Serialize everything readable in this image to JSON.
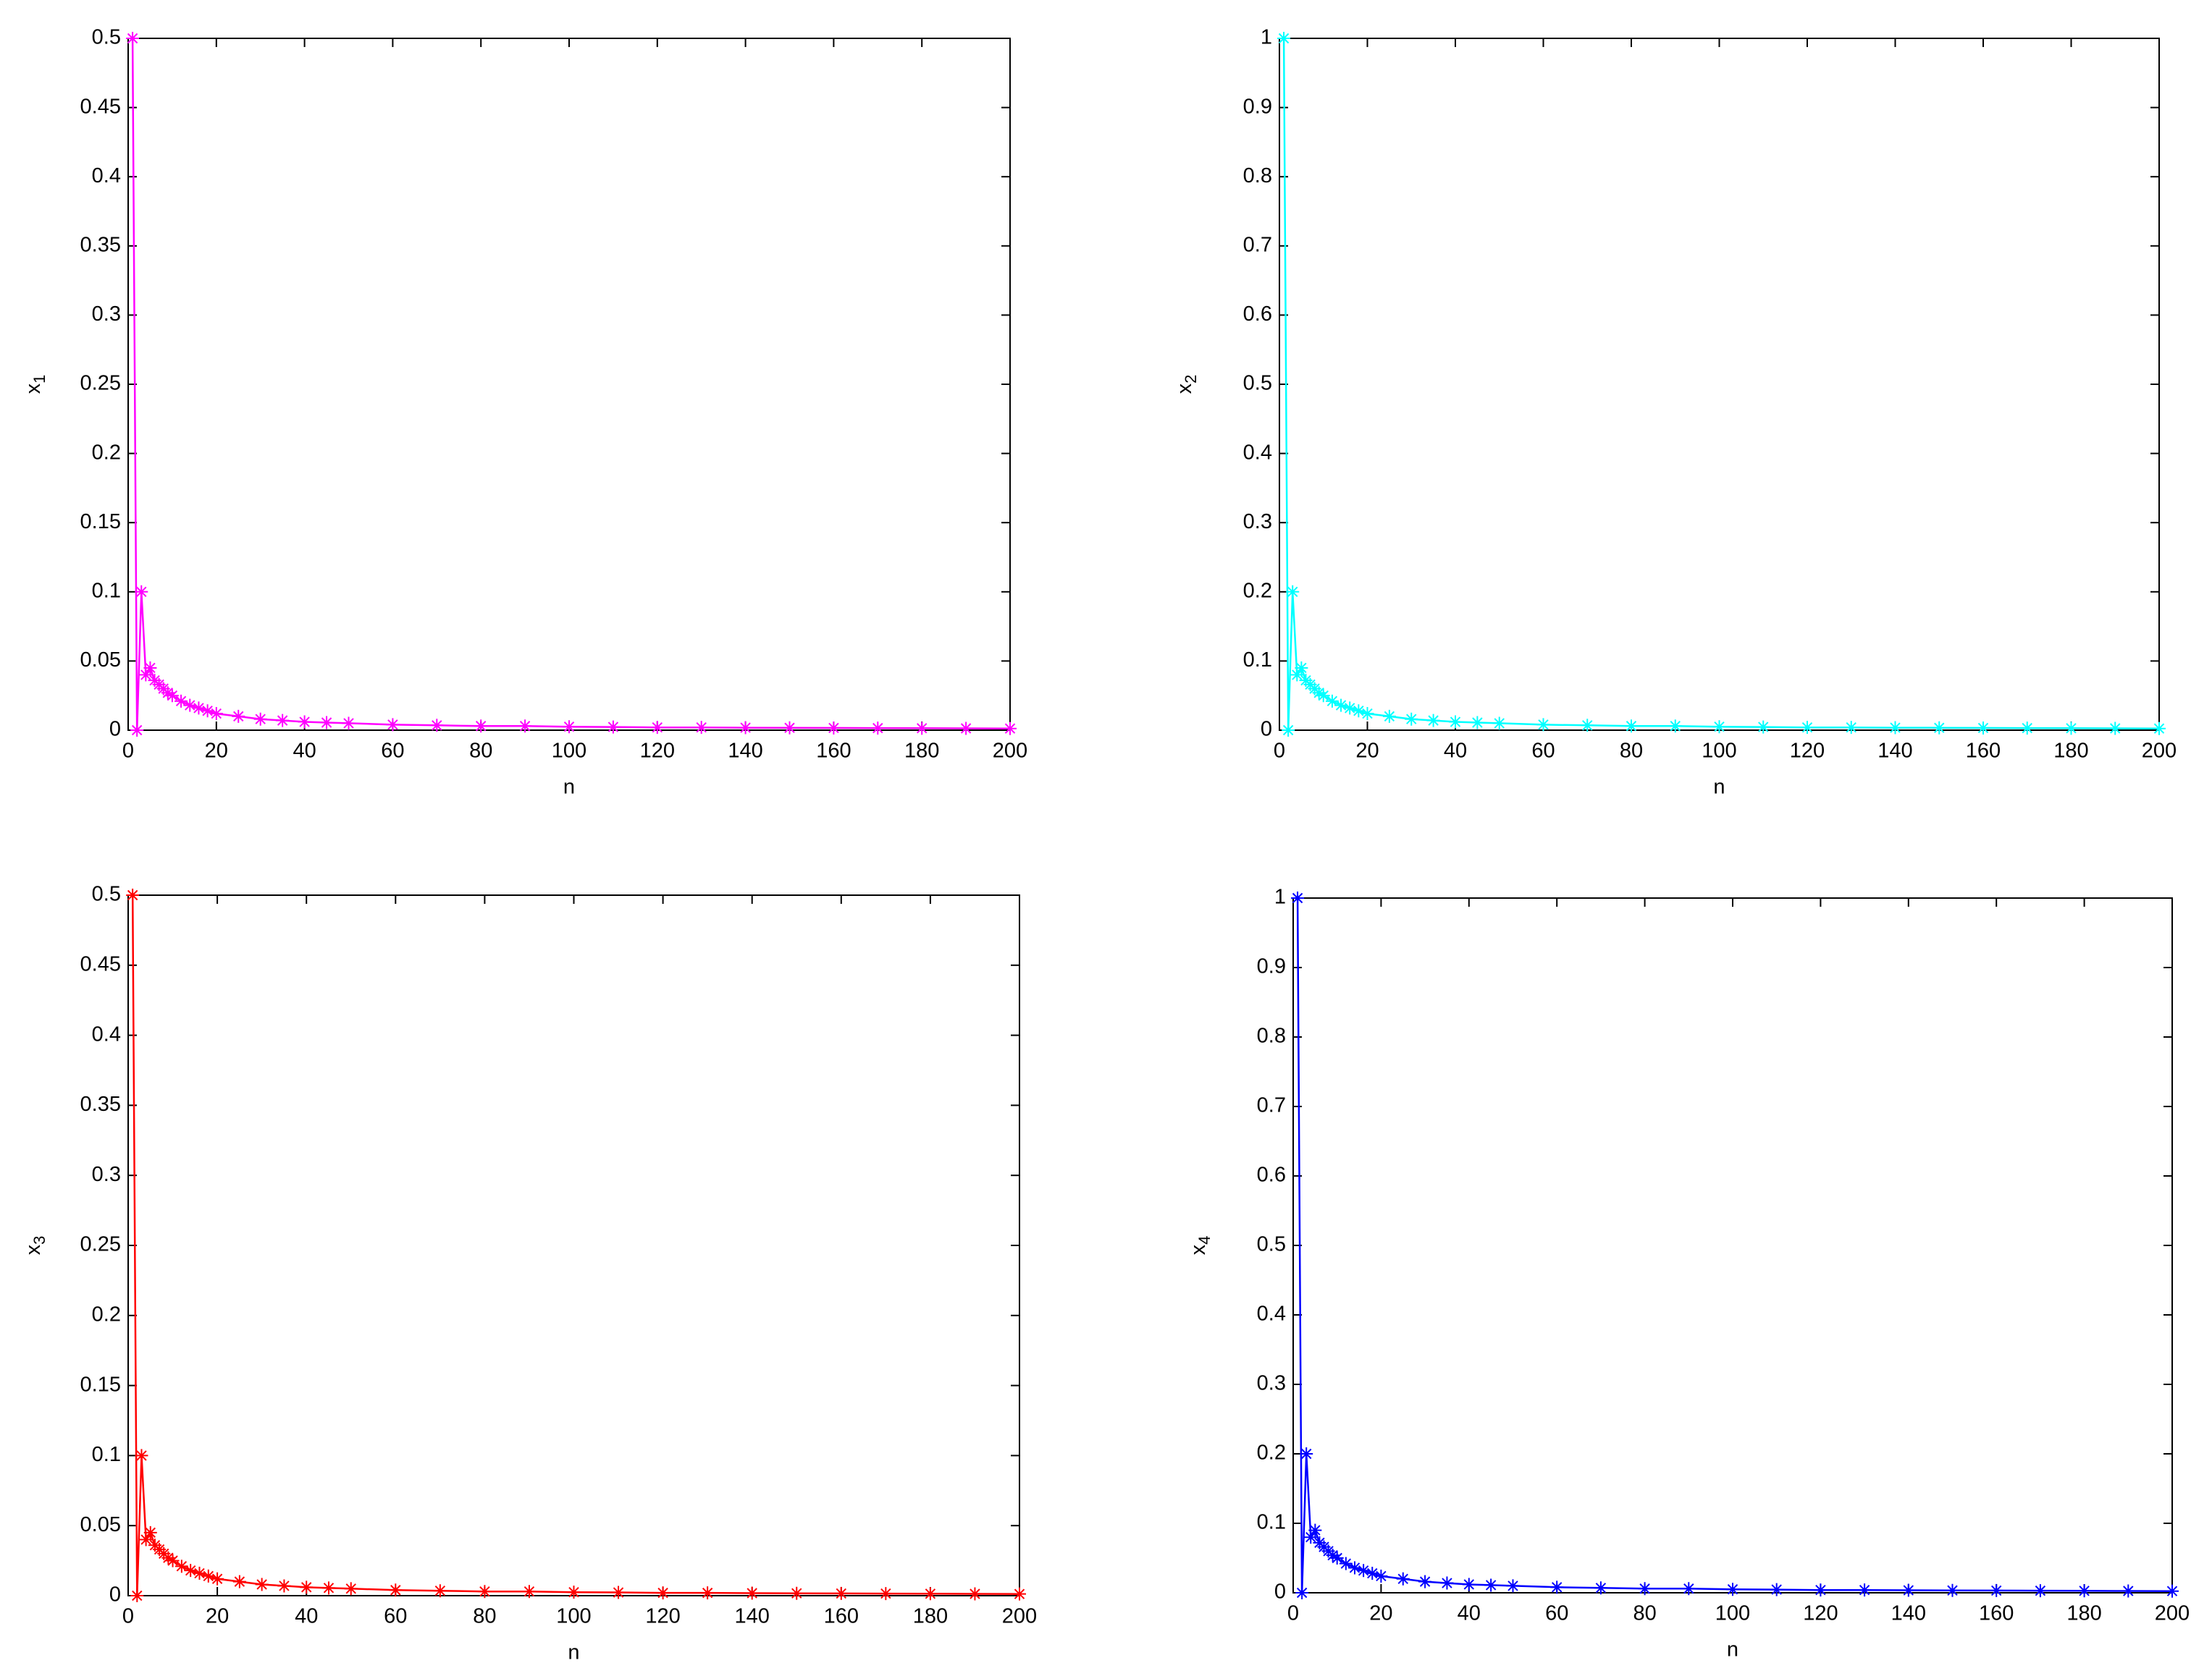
{
  "chart_data": [
    {
      "type": "line",
      "color": "#ff00ff",
      "xlabel": "n",
      "ylabel": "x",
      "ylabel_subscript": "1",
      "x": [
        1,
        2,
        3,
        4,
        5,
        6,
        7,
        8,
        9,
        10,
        12,
        14,
        16,
        18,
        20,
        25,
        30,
        35,
        40,
        45,
        50,
        60,
        70,
        80,
        90,
        100,
        110,
        120,
        130,
        140,
        150,
        160,
        170,
        180,
        190,
        200
      ],
      "values": [
        0.5,
        0,
        0.1,
        0.04,
        0.045,
        0.036,
        0.033,
        0.03,
        0.027,
        0.025,
        0.021,
        0.018,
        0.016,
        0.014,
        0.012,
        0.01,
        0.008,
        0.007,
        0.006,
        0.0055,
        0.005,
        0.004,
        0.0035,
        0.003,
        0.003,
        0.0025,
        0.0023,
        0.002,
        0.002,
        0.0018,
        0.0017,
        0.0016,
        0.0015,
        0.0014,
        0.0013,
        0.0012
      ],
      "xlim": [
        0,
        200
      ],
      "xticks": [
        0,
        20,
        40,
        60,
        80,
        100,
        120,
        140,
        160,
        180,
        200
      ],
      "ylim": [
        0,
        0.5
      ],
      "yticks": [
        0,
        0.05,
        0.1,
        0.15,
        0.2,
        0.25,
        0.3,
        0.35,
        0.4,
        0.45,
        0.5
      ]
    },
    {
      "type": "line",
      "color": "#00ffff",
      "xlabel": "n",
      "ylabel": "x",
      "ylabel_subscript": "2",
      "x": [
        1,
        2,
        3,
        4,
        5,
        6,
        7,
        8,
        9,
        10,
        12,
        14,
        16,
        18,
        20,
        25,
        30,
        35,
        40,
        45,
        50,
        60,
        70,
        80,
        90,
        100,
        110,
        120,
        130,
        140,
        150,
        160,
        170,
        180,
        190,
        200
      ],
      "values": [
        1,
        0,
        0.2,
        0.08,
        0.09,
        0.072,
        0.066,
        0.06,
        0.054,
        0.05,
        0.042,
        0.036,
        0.032,
        0.028,
        0.024,
        0.02,
        0.016,
        0.014,
        0.012,
        0.011,
        0.01,
        0.008,
        0.007,
        0.006,
        0.006,
        0.005,
        0.0046,
        0.004,
        0.004,
        0.0036,
        0.0034,
        0.0032,
        0.003,
        0.0028,
        0.0026,
        0.0024
      ],
      "xlim": [
        0,
        200
      ],
      "xticks": [
        0,
        20,
        40,
        60,
        80,
        100,
        120,
        140,
        160,
        180,
        200
      ],
      "ylim": [
        0,
        1
      ],
      "yticks": [
        0,
        0.1,
        0.2,
        0.3,
        0.4,
        0.5,
        0.6,
        0.7,
        0.8,
        0.9,
        1
      ]
    },
    {
      "type": "line",
      "color": "#ff0000",
      "xlabel": "n",
      "ylabel": "x",
      "ylabel_subscript": "3",
      "x": [
        1,
        2,
        3,
        4,
        5,
        6,
        7,
        8,
        9,
        10,
        12,
        14,
        16,
        18,
        20,
        25,
        30,
        35,
        40,
        45,
        50,
        60,
        70,
        80,
        90,
        100,
        110,
        120,
        130,
        140,
        150,
        160,
        170,
        180,
        190,
        200
      ],
      "values": [
        0.5,
        0,
        0.1,
        0.04,
        0.045,
        0.036,
        0.033,
        0.03,
        0.027,
        0.025,
        0.021,
        0.018,
        0.016,
        0.014,
        0.012,
        0.01,
        0.008,
        0.007,
        0.006,
        0.0055,
        0.005,
        0.004,
        0.0035,
        0.003,
        0.003,
        0.0025,
        0.0023,
        0.002,
        0.002,
        0.0018,
        0.0017,
        0.0016,
        0.0015,
        0.0014,
        0.0013,
        0.0012
      ],
      "xlim": [
        0,
        200
      ],
      "xticks": [
        0,
        20,
        40,
        60,
        80,
        100,
        120,
        140,
        160,
        180,
        200
      ],
      "ylim": [
        0,
        0.5
      ],
      "yticks": [
        0,
        0.05,
        0.1,
        0.15,
        0.2,
        0.25,
        0.3,
        0.35,
        0.4,
        0.45,
        0.5
      ]
    },
    {
      "type": "line",
      "color": "#0000ff",
      "xlabel": "n",
      "ylabel": "x",
      "ylabel_subscript": "4",
      "x": [
        1,
        2,
        3,
        4,
        5,
        6,
        7,
        8,
        9,
        10,
        12,
        14,
        16,
        18,
        20,
        25,
        30,
        35,
        40,
        45,
        50,
        60,
        70,
        80,
        90,
        100,
        110,
        120,
        130,
        140,
        150,
        160,
        170,
        180,
        190,
        200
      ],
      "values": [
        1,
        0,
        0.2,
        0.08,
        0.09,
        0.072,
        0.066,
        0.06,
        0.054,
        0.05,
        0.042,
        0.036,
        0.032,
        0.028,
        0.024,
        0.02,
        0.016,
        0.014,
        0.012,
        0.011,
        0.01,
        0.008,
        0.007,
        0.006,
        0.006,
        0.005,
        0.0046,
        0.004,
        0.004,
        0.0036,
        0.0034,
        0.0032,
        0.003,
        0.0028,
        0.0026,
        0.0024
      ],
      "xlim": [
        0,
        200
      ],
      "xticks": [
        0,
        20,
        40,
        60,
        80,
        100,
        120,
        140,
        160,
        180,
        200
      ],
      "ylim": [
        0,
        1
      ],
      "yticks": [
        0,
        0.1,
        0.2,
        0.3,
        0.4,
        0.5,
        0.6,
        0.7,
        0.8,
        0.9,
        1
      ]
    }
  ]
}
